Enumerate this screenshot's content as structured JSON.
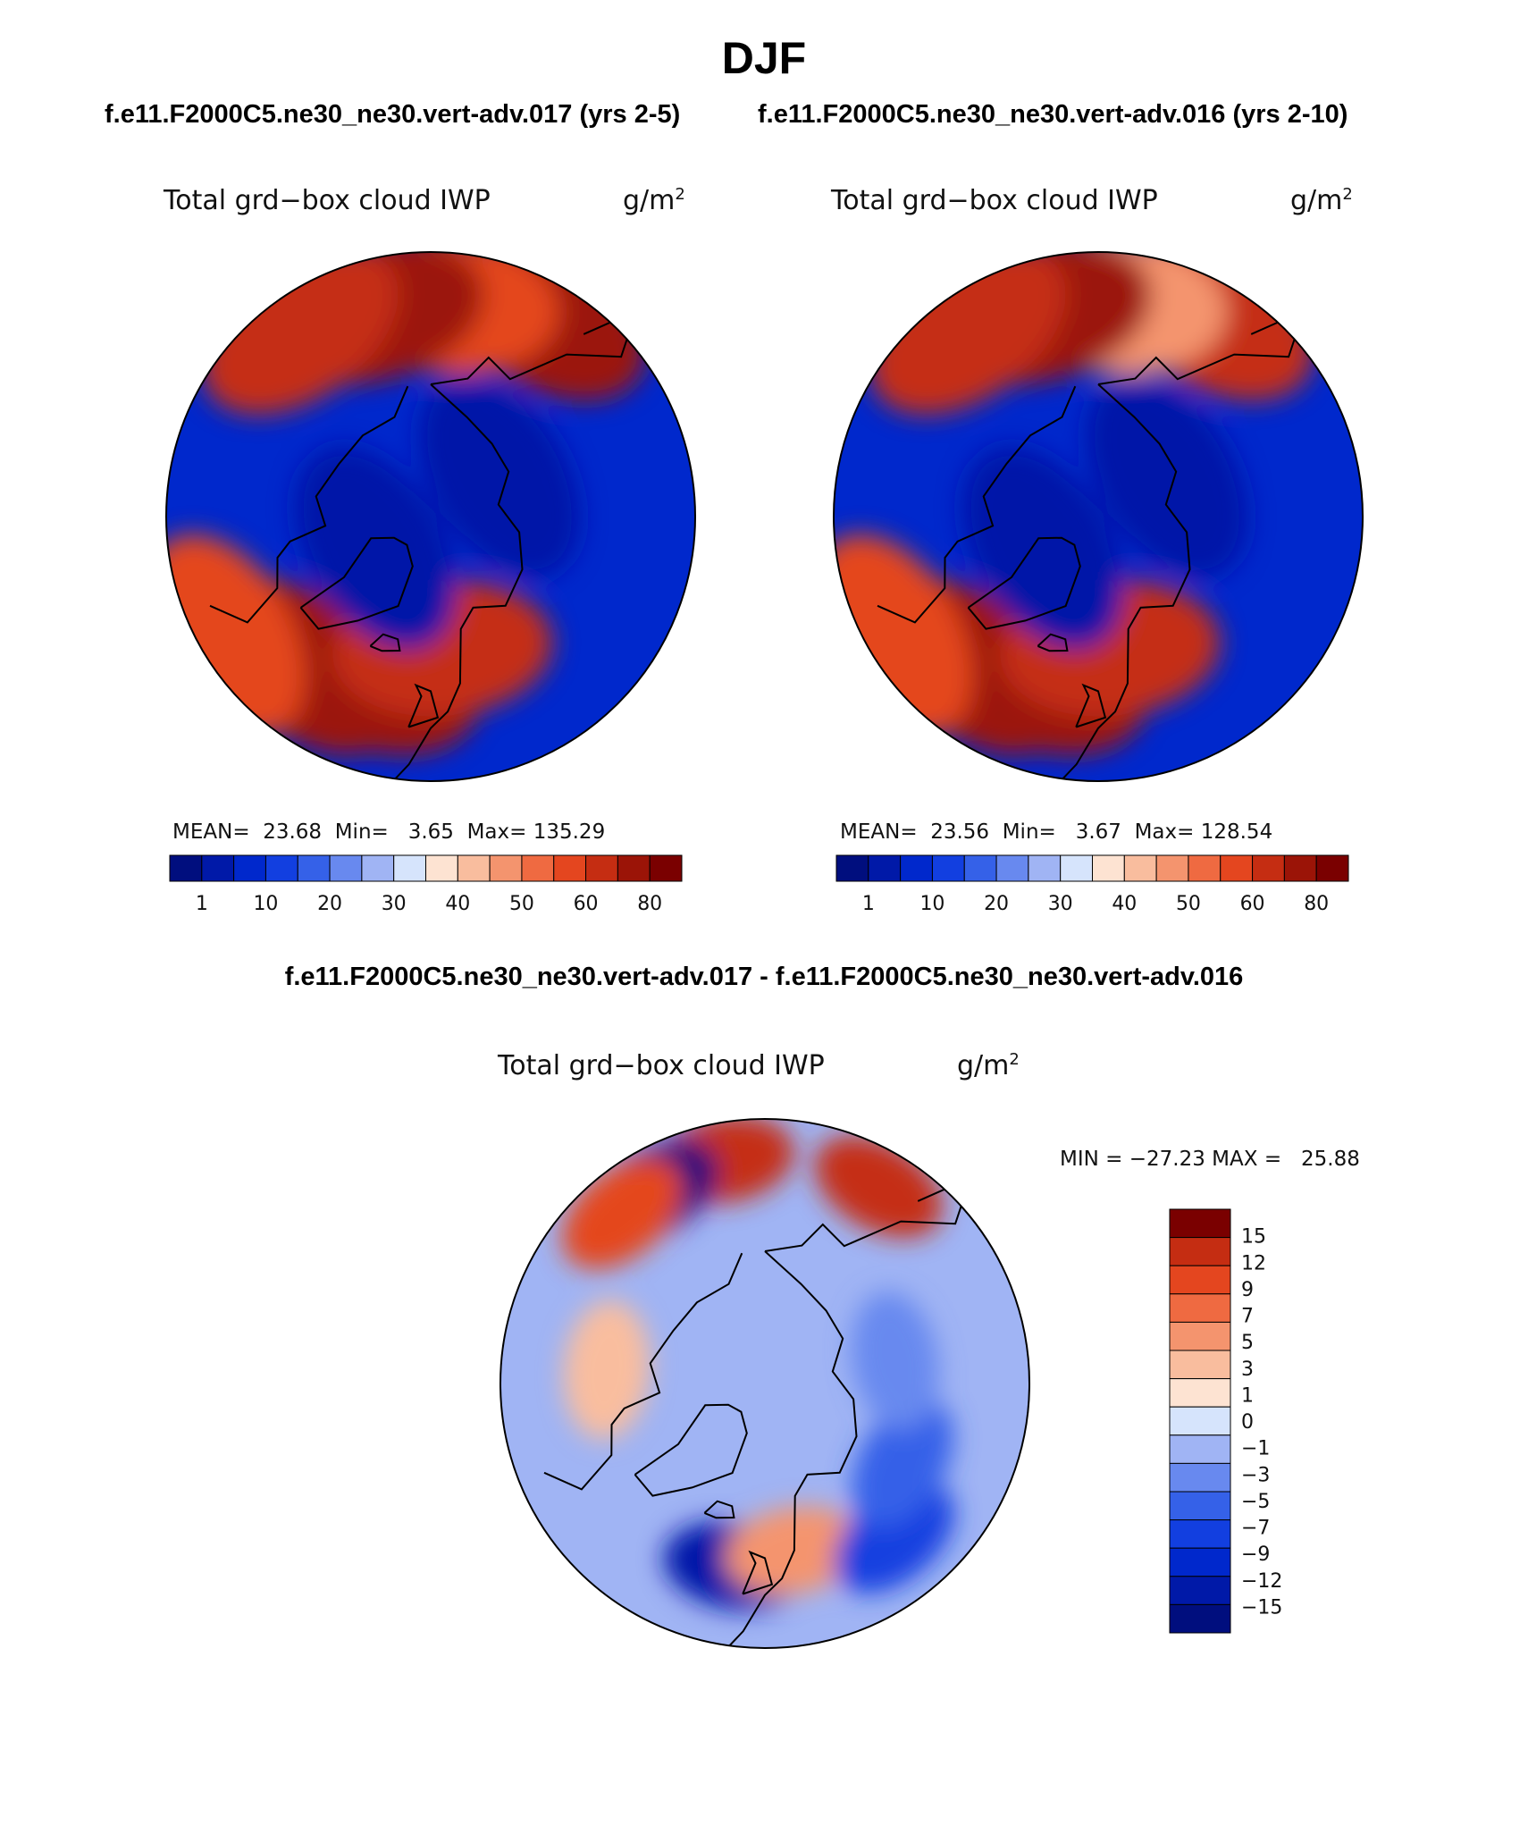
{
  "page": {
    "title": "DJF",
    "case1_title": "f.e11.F2000C5.ne30_ne30.vert-adv.017 (yrs 2-5)",
    "case2_title": "f.e11.F2000C5.ne30_ne30.vert-adv.016 (yrs 2-10)",
    "diff_title": "f.e11.F2000C5.ne30_ne30.vert-adv.017 - f.e11.F2000C5.ne30_ne30.vert-adv.016"
  },
  "colors": {
    "abs_levels": [
      "#000e7e",
      "#0019a8",
      "#0028cc",
      "#123fe0",
      "#3561e8",
      "#6889ef",
      "#a0b4f4",
      "#d6e4fc",
      "#fde3d2",
      "#f9bd9e",
      "#f4946e",
      "#ef6a41",
      "#e4461f",
      "#c52d12",
      "#9b1407",
      "#7a0000"
    ],
    "diff_levels": [
      "#000e7e",
      "#0019a8",
      "#0028cc",
      "#123fe0",
      "#3561e8",
      "#6889ef",
      "#a0b4f4",
      "#d6e4fc",
      "#fde3d2",
      "#f9bd9e",
      "#f4946e",
      "#ef6a41",
      "#e4461f",
      "#c52d12",
      "#7a0000"
    ]
  },
  "chart_data": [
    {
      "type": "heatmap",
      "projection": "north-polar-stereographic",
      "title": "Total grd−box cloud IWP",
      "units": "g/m",
      "units_sup": "2",
      "stats": {
        "mean_label": "MEAN=",
        "mean": "23.68",
        "min_label": "Min=",
        "min": "3.65",
        "max_label": "Max=",
        "max": "135.29"
      },
      "colorbar_ticks": [
        "1",
        "10",
        "20",
        "30",
        "40",
        "50",
        "60",
        "80"
      ],
      "regions": [
        {
          "lon": 150,
          "lat": 47,
          "value": 80
        },
        {
          "lon": 175,
          "lat": 50,
          "value": 60
        },
        {
          "lon": -165,
          "lat": 50,
          "value": 85
        },
        {
          "lon": -145,
          "lat": 47,
          "value": 75
        },
        {
          "lon": -40,
          "lat": 53,
          "value": 88
        },
        {
          "lon": -20,
          "lat": 57,
          "value": 85
        },
        {
          "lon": 5,
          "lat": 65,
          "value": 72
        },
        {
          "lon": -60,
          "lat": 45,
          "value": 65
        },
        {
          "lon": 120,
          "lat": 75,
          "value": 8
        },
        {
          "lon": -60,
          "lat": 78,
          "value": 9
        }
      ]
    },
    {
      "type": "heatmap",
      "projection": "north-polar-stereographic",
      "title": "Total grd−box cloud IWP",
      "units": "g/m",
      "units_sup": "2",
      "stats": {
        "mean_label": "MEAN=",
        "mean": "23.56",
        "min_label": "Min=",
        "min": "3.67",
        "max_label": "Max=",
        "max": "128.54"
      },
      "colorbar_ticks": [
        "1",
        "10",
        "20",
        "30",
        "40",
        "50",
        "60",
        "80"
      ],
      "regions": [
        {
          "lon": 150,
          "lat": 47,
          "value": 70
        },
        {
          "lon": 175,
          "lat": 50,
          "value": 52
        },
        {
          "lon": -165,
          "lat": 50,
          "value": 82
        },
        {
          "lon": -145,
          "lat": 47,
          "value": 72
        },
        {
          "lon": -40,
          "lat": 53,
          "value": 86
        },
        {
          "lon": -20,
          "lat": 57,
          "value": 82
        },
        {
          "lon": 5,
          "lat": 65,
          "value": 70
        },
        {
          "lon": -60,
          "lat": 45,
          "value": 62
        },
        {
          "lon": 120,
          "lat": 75,
          "value": 6
        },
        {
          "lon": -60,
          "lat": 78,
          "value": 7
        }
      ]
    },
    {
      "type": "heatmap",
      "projection": "north-polar-stereographic",
      "title": "Total grd−box cloud IWP",
      "units": "g/m",
      "units_sup": "2",
      "stats": {
        "min_label": "MIN =",
        "min": "−27.23",
        "max_label": "MAX =",
        "max": "25.88"
      },
      "colorbar_ticks": [
        "15",
        "12",
        "9",
        "7",
        "5",
        "3",
        "1",
        "0",
        "−1",
        "−3",
        "−5",
        "−7",
        "−9",
        "−12",
        "−15"
      ],
      "regions": [
        {
          "lon": 150,
          "lat": 47,
          "value": 14
        },
        {
          "lon": -170,
          "lat": 47,
          "value": 12
        },
        {
          "lon": -150,
          "lat": 48,
          "value": -16
        },
        {
          "lon": -140,
          "lat": 48,
          "value": 10
        },
        {
          "lon": -10,
          "lat": 55,
          "value": -12
        },
        {
          "lon": 10,
          "lat": 58,
          "value": 6
        },
        {
          "lon": 40,
          "lat": 52,
          "value": -7
        },
        {
          "lon": 60,
          "lat": 60,
          "value": -5
        },
        {
          "lon": -95,
          "lat": 60,
          "value": 3
        },
        {
          "lon": 100,
          "lat": 65,
          "value": -2
        }
      ]
    }
  ]
}
